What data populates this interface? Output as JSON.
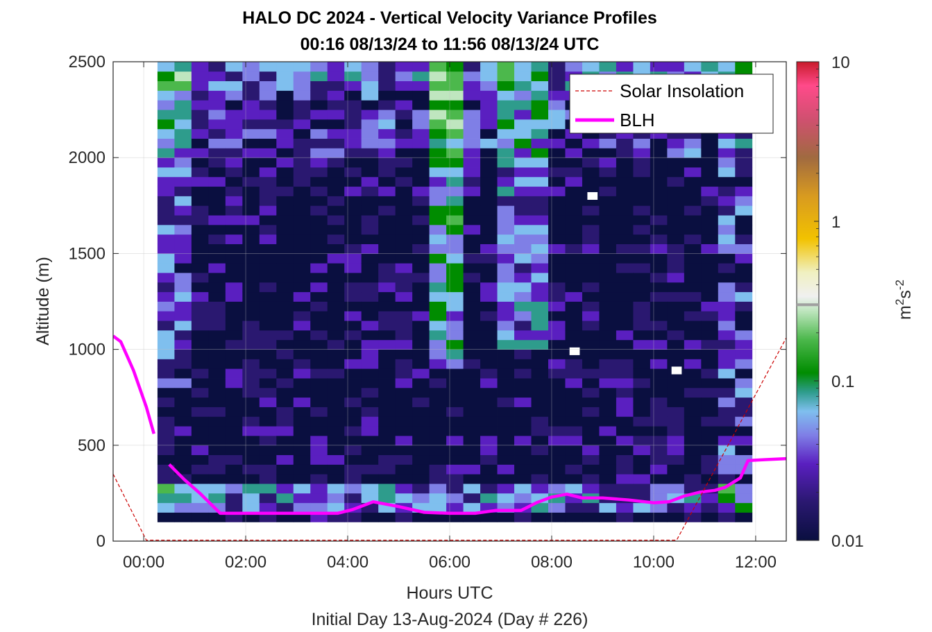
{
  "chart_data": {
    "type": "heatmap",
    "title": "HALO DC 2024 - Vertical Velocity Variance Profiles",
    "subtitle": "00:16 08/13/24 to 11:56 08/13/24  UTC",
    "xlabel": "Hours UTC",
    "xlabel2": "Initial Day 13-Aug-2024 (Day # 226)",
    "ylabel": "Altitude (m)",
    "xlim": [
      -0.6,
      12.6
    ],
    "ylim": [
      0,
      2500
    ],
    "x_ticks": [
      0,
      2,
      4,
      6,
      8,
      10,
      12
    ],
    "x_tick_labels": [
      "00:00",
      "02:00",
      "04:00",
      "06:00",
      "08:00",
      "10:00",
      "12:00"
    ],
    "y_ticks": [
      0,
      500,
      1000,
      1500,
      2000,
      2500
    ],
    "y_tick_labels": [
      "0",
      "500",
      "1000",
      "1500",
      "2000",
      "2500"
    ],
    "grid": true,
    "colorbar": {
      "label": "m²s⁻²",
      "scale": "log",
      "range": [
        0.01,
        10
      ],
      "ticks": [
        0.01,
        0.1,
        1,
        10
      ],
      "tick_labels": [
        "0.01",
        "0.1",
        "1",
        "10"
      ],
      "marker_value": 0.3
    },
    "legend": {
      "placement": "top-right",
      "entries": [
        {
          "label": "Solar Insolation",
          "color": "#cc0000",
          "style": "dashed"
        },
        {
          "label": "BLH",
          "color": "#ff00ff",
          "style": "solid"
        }
      ]
    },
    "heatmap": {
      "time_start": 0.27,
      "time_end": 11.93,
      "altitude_start": 100,
      "altitude_end": 2500,
      "time_columns": 35,
      "altitude_bins": 48,
      "colormap": [
        "#0a0f40",
        "#2a1870",
        "#5a1fc0",
        "#7f7fe6",
        "#7fbfee",
        "#2e9c8c",
        "#008c00",
        "#4cb84c",
        "#bfe6bf",
        "#f0f0c0",
        "#f2c200",
        "#d89a20",
        "#a06a40",
        "#d05070",
        "#ff4a8a",
        "#c81a2a"
      ],
      "gaps": [
        {
          "time": 8.8,
          "altitude": 1800
        },
        {
          "time": 8.45,
          "altitude": 990
        },
        {
          "time": 10.45,
          "altitude": 890
        }
      ]
    },
    "series": [
      {
        "name": "BLH",
        "color": "#ff00ff",
        "segments": [
          {
            "x": [
              -0.6,
              -0.45,
              -0.2,
              0.05,
              0.2
            ],
            "y": [
              1070,
              1040,
              890,
              700,
              560
            ]
          },
          {
            "x": [
              0.5,
              0.8,
              1.1,
              1.5,
              2.0,
              3.0,
              3.8,
              4.1,
              4.5,
              5.0,
              5.5,
              6.0,
              6.5,
              6.9,
              7.4,
              7.7,
              8.0,
              8.3,
              8.6,
              9.0,
              9.5,
              10.0,
              10.3,
              10.6,
              10.9,
              11.2,
              11.4,
              11.7,
              11.85,
              12.2,
              12.6
            ],
            "y": [
              400,
              320,
              250,
              145,
              145,
              145,
              145,
              165,
              205,
              180,
              150,
              145,
              145,
              160,
              160,
              200,
              230,
              245,
              225,
              225,
              215,
              200,
              205,
              235,
              255,
              265,
              280,
              330,
              420,
              425,
              430
            ]
          }
        ]
      },
      {
        "name": "Solar Insolation",
        "color": "#cc0000",
        "x": [
          -0.6,
          0.05,
          0.05,
          10.45,
          10.45,
          12.6
        ],
        "y": [
          350,
          5,
          5,
          5,
          5,
          1060
        ]
      }
    ]
  }
}
